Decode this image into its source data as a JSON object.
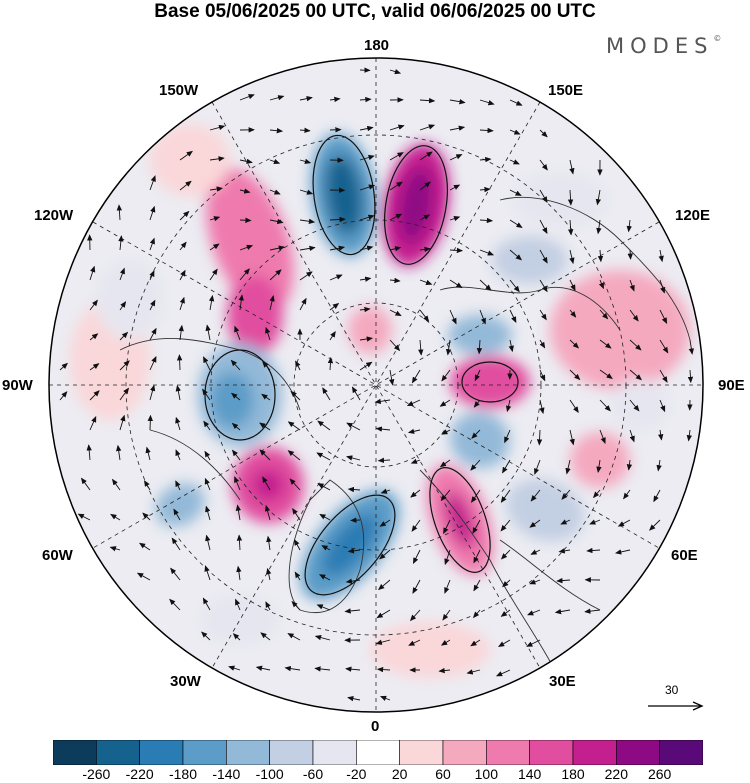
{
  "title": "Base 05/06/2025 00 UTC, valid 06/06/2025 00 UTC",
  "brand": "MODES",
  "brand_mark": "©",
  "longitude_labels": {
    "lon_180": "180",
    "lon_150W": "150W",
    "lon_150E": "150E",
    "lon_120W": "120W",
    "lon_120E": "120E",
    "lon_90W": "90W",
    "lon_90E": "90E",
    "lon_60W": "60W",
    "lon_60E": "60E",
    "lon_30W": "30W",
    "lon_30E": "30E",
    "lon_0": "0"
  },
  "reference_vector": {
    "label": "30",
    "icon": "arrow-right-icon"
  },
  "colorbar": {
    "ticks": [
      "-260",
      "-220",
      "-180",
      "-140",
      "-100",
      "-60",
      "-20",
      "20",
      "60",
      "100",
      "140",
      "180",
      "220",
      "260"
    ],
    "colors": [
      "#0d3b5c",
      "#15628f",
      "#2a7cb4",
      "#5b9cc8",
      "#93b9d8",
      "#c3cfe3",
      "#e6e6f0",
      "#ffffff",
      "#fad7d9",
      "#f5a9bf",
      "#ef7aae",
      "#e14d9f",
      "#c41f8e",
      "#8e0a84",
      "#5a0a78"
    ]
  },
  "map_colors": {
    "land_outline": "#333333",
    "grid": "#222222",
    "wind_arrow": "#111111"
  }
}
